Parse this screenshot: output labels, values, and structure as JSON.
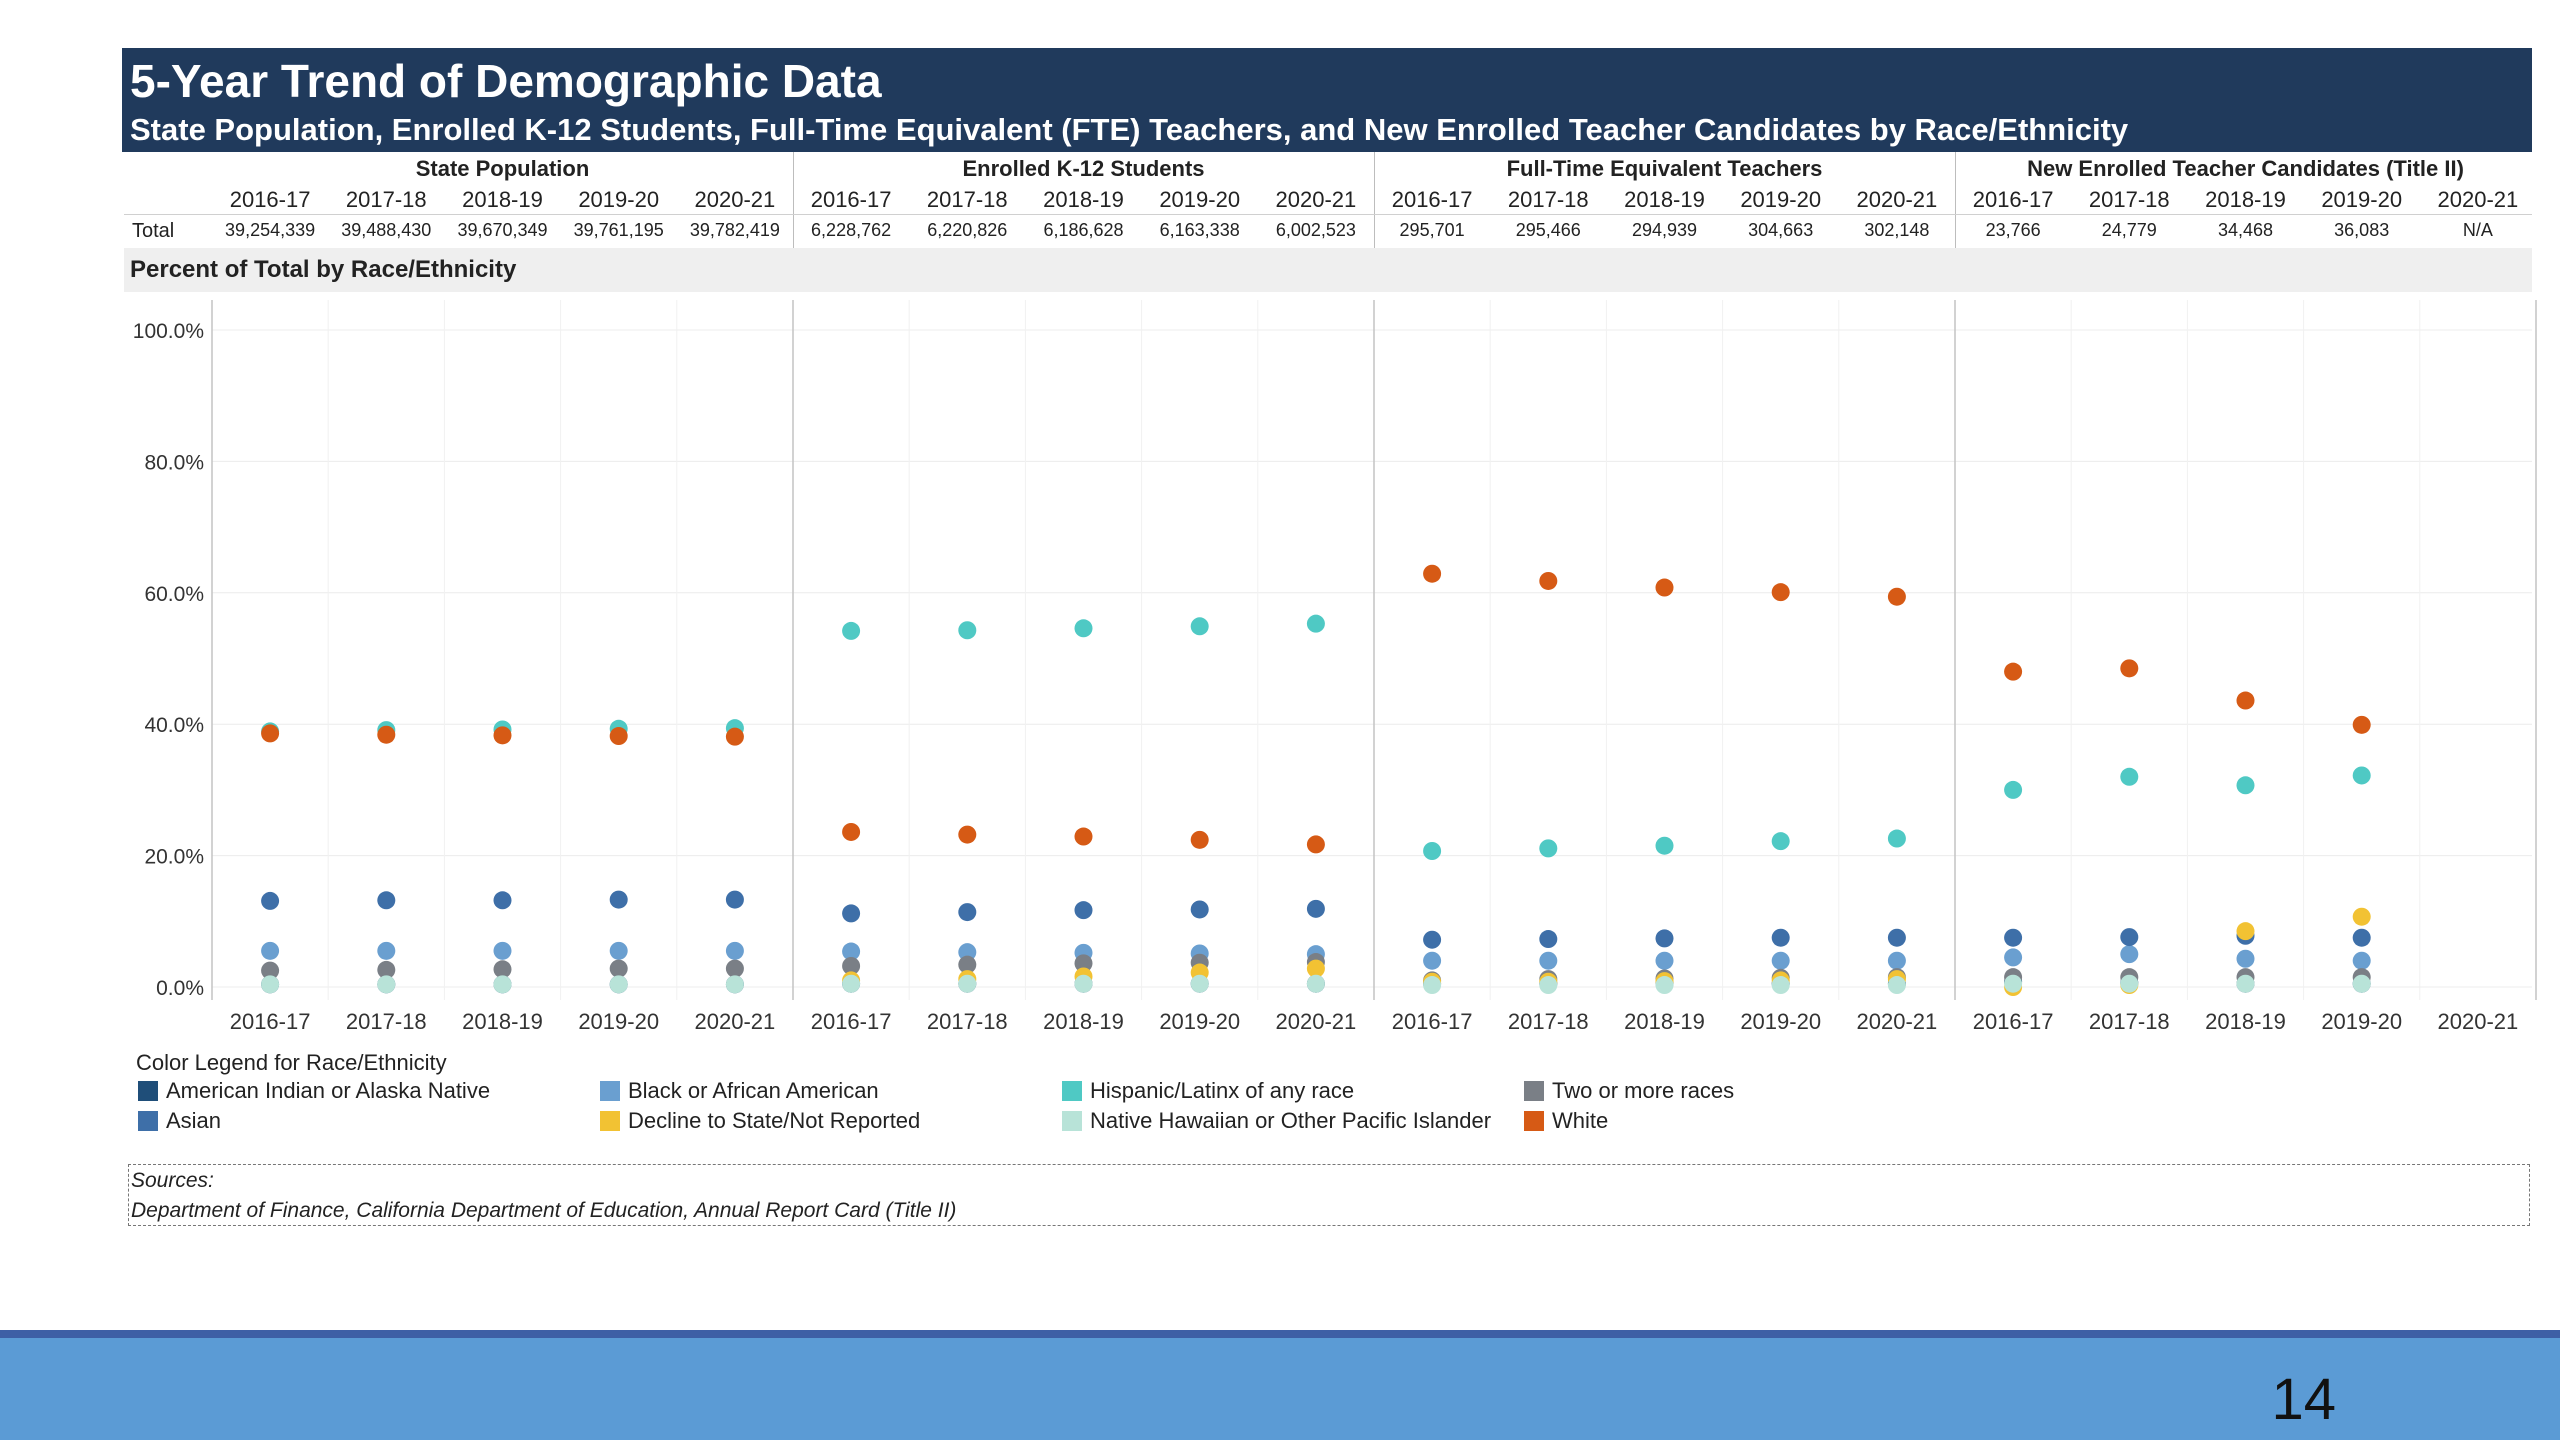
{
  "header": {
    "title": "5-Year Trend of Demographic Data",
    "subtitle": "State Population, Enrolled K-12 Students, Full-Time Equivalent (FTE) Teachers, and New Enrolled Teacher Candidates by Race/Ethnicity"
  },
  "table": {
    "row_label": "Total",
    "sections": [
      {
        "name": "State Population",
        "years": [
          "2016-17",
          "2017-18",
          "2018-19",
          "2019-20",
          "2020-21"
        ],
        "totals": [
          "39,254,339",
          "39,488,430",
          "39,670,349",
          "39,761,195",
          "39,782,419"
        ]
      },
      {
        "name": "Enrolled K-12 Students",
        "years": [
          "2016-17",
          "2017-18",
          "2018-19",
          "2019-20",
          "2020-21"
        ],
        "totals": [
          "6,228,762",
          "6,220,826",
          "6,186,628",
          "6,163,338",
          "6,002,523"
        ]
      },
      {
        "name": "Full-Time Equivalent Teachers",
        "years": [
          "2016-17",
          "2017-18",
          "2018-19",
          "2019-20",
          "2020-21"
        ],
        "totals": [
          "295,701",
          "295,466",
          "294,939",
          "304,663",
          "302,148"
        ]
      },
      {
        "name": "New Enrolled Teacher Candidates (Title II)",
        "years": [
          "2016-17",
          "2017-18",
          "2018-19",
          "2019-20",
          "2020-21"
        ],
        "totals": [
          "23,766",
          "24,779",
          "34,468",
          "36,083",
          "N/A"
        ]
      }
    ]
  },
  "percent_label": "Percent of Total by Race/Ethnicity",
  "chart_data": {
    "type": "scatter",
    "ylim": [
      0,
      100
    ],
    "yticks": [
      "0.0%",
      "20.0%",
      "40.0%",
      "60.0%",
      "80.0%",
      "100.0%"
    ],
    "ytick_values": [
      0,
      20,
      40,
      60,
      80,
      100
    ],
    "x_labels": [
      "2016-17",
      "2017-18",
      "2018-19",
      "2019-20",
      "2020-21",
      "2016-17",
      "2017-18",
      "2018-19",
      "2019-20",
      "2020-21",
      "2016-17",
      "2017-18",
      "2018-19",
      "2019-20",
      "2020-21",
      "2016-17",
      "2017-18",
      "2018-19",
      "2019-20",
      "2020-21"
    ],
    "legend_title": "Color Legend for Race/Ethnicity",
    "series": [
      {
        "name": "American Indian or Alaska Native",
        "color": "#1f4e79",
        "values": [
          0.4,
          0.4,
          0.4,
          0.4,
          0.4,
          0.5,
          0.5,
          0.5,
          0.5,
          0.5,
          0.5,
          0.5,
          0.5,
          0.5,
          0.5,
          0.8,
          0.6,
          0.5,
          0.5,
          null
        ]
      },
      {
        "name": "Black or African American",
        "color": "#6a9fd0",
        "values": [
          5.5,
          5.5,
          5.5,
          5.5,
          5.5,
          5.4,
          5.3,
          5.2,
          5.1,
          5.0,
          4.0,
          4.0,
          4.0,
          4.0,
          4.0,
          4.5,
          5.0,
          4.3,
          4.0,
          null
        ]
      },
      {
        "name": "Hispanic/Latinx of any race",
        "color": "#4fc9c4",
        "values": [
          38.9,
          39.1,
          39.2,
          39.3,
          39.4,
          54.2,
          54.3,
          54.6,
          54.9,
          55.3,
          20.7,
          21.1,
          21.5,
          22.2,
          22.6,
          30.0,
          32.0,
          30.7,
          32.2,
          null
        ]
      },
      {
        "name": "Two or more races",
        "color": "#7a7f86",
        "values": [
          2.5,
          2.6,
          2.7,
          2.8,
          2.8,
          3.2,
          3.4,
          3.6,
          3.7,
          3.8,
          1.0,
          1.2,
          1.3,
          1.4,
          1.5,
          1.5,
          1.5,
          1.5,
          1.5,
          null
        ]
      },
      {
        "name": "Asian",
        "color": "#3e6fa8",
        "values": [
          13.1,
          13.2,
          13.2,
          13.3,
          13.3,
          11.2,
          11.4,
          11.7,
          11.8,
          11.9,
          7.2,
          7.3,
          7.4,
          7.5,
          7.5,
          7.5,
          7.6,
          7.8,
          7.5,
          null
        ]
      },
      {
        "name": "Decline to State/Not Reported",
        "color": "#f2c233",
        "values": [
          null,
          null,
          null,
          null,
          null,
          1.0,
          1.2,
          1.6,
          2.2,
          2.8,
          0.8,
          0.8,
          0.9,
          1.0,
          1.2,
          0,
          0.3,
          8.5,
          10.7,
          null
        ]
      },
      {
        "name": "Native Hawaiian or Other Pacific Islander",
        "color": "#b8e3d8",
        "values": [
          0.4,
          0.4,
          0.4,
          0.4,
          0.4,
          0.5,
          0.5,
          0.5,
          0.5,
          0.5,
          0.3,
          0.3,
          0.3,
          0.3,
          0.3,
          0.5,
          0.5,
          0.5,
          0.5,
          null
        ]
      },
      {
        "name": "White",
        "color": "#d65a15",
        "values": [
          38.6,
          38.4,
          38.3,
          38.2,
          38.1,
          23.6,
          23.2,
          22.9,
          22.4,
          21.7,
          62.9,
          61.8,
          60.8,
          60.1,
          59.4,
          48.0,
          48.5,
          43.6,
          39.9,
          null
        ]
      }
    ]
  },
  "legend_rows": [
    [
      0,
      1,
      2,
      3
    ],
    [
      4,
      5,
      6,
      7
    ]
  ],
  "sources": {
    "label": "Sources:",
    "text": "Department of Finance, California Department of Education, Annual Report Card (Title II)"
  },
  "footer": {
    "page_number": "14"
  }
}
